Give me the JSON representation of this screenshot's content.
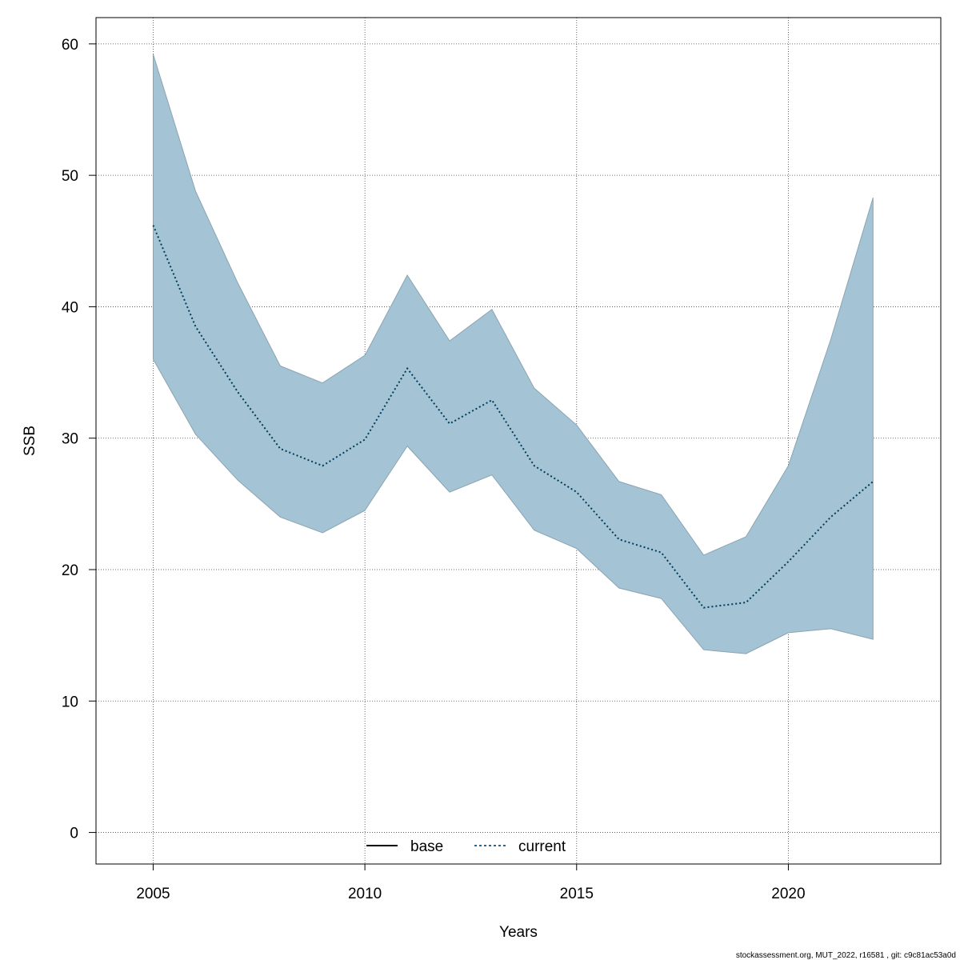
{
  "chart_data": {
    "type": "area",
    "xlabel": "Years",
    "ylabel": "SSB",
    "xlim": [
      2003.65,
      2023.6
    ],
    "ylim": [
      -2.4,
      62.0
    ],
    "x_ticks": [
      2005,
      2010,
      2015,
      2020
    ],
    "y_ticks": [
      0,
      10,
      20,
      30,
      40,
      50,
      60
    ],
    "grid": true,
    "x": [
      2005,
      2006,
      2007,
      2008,
      2009,
      2010,
      2011,
      2012,
      2013,
      2014,
      2015,
      2016,
      2017,
      2018,
      2019,
      2020,
      2021,
      2022
    ],
    "band": {
      "lower": [
        36.0,
        30.3,
        26.8,
        24.0,
        22.8,
        24.5,
        29.4,
        25.9,
        27.2,
        23.0,
        21.6,
        18.6,
        17.8,
        13.9,
        13.6,
        15.2,
        15.5,
        14.7
      ],
      "upper": [
        59.2,
        48.8,
        41.8,
        35.5,
        34.2,
        36.3,
        42.4,
        37.4,
        39.8,
        33.8,
        31.0,
        26.7,
        25.7,
        21.1,
        22.5,
        27.9,
        37.5,
        48.3
      ],
      "fill": "#a4c3d4",
      "stroke": "#8aa4b2"
    },
    "series": [
      {
        "name": "current",
        "values": [
          46.2,
          38.5,
          33.5,
          29.2,
          27.9,
          29.9,
          35.3,
          31.1,
          32.9,
          27.9,
          25.9,
          22.3,
          21.3,
          17.1,
          17.5,
          20.6,
          24.0,
          26.7
        ],
        "color": "#003c5a",
        "dash": "dotted"
      }
    ],
    "legend": {
      "placement": "bottom-center",
      "items": [
        {
          "label": "base",
          "style": "solid",
          "color": "#000000"
        },
        {
          "label": "current",
          "style": "dotted",
          "color": "#1f6a96"
        }
      ]
    },
    "footer": "stockassessment.org, MUT_2022, r16581 , git: c9c81ac53a0d"
  }
}
